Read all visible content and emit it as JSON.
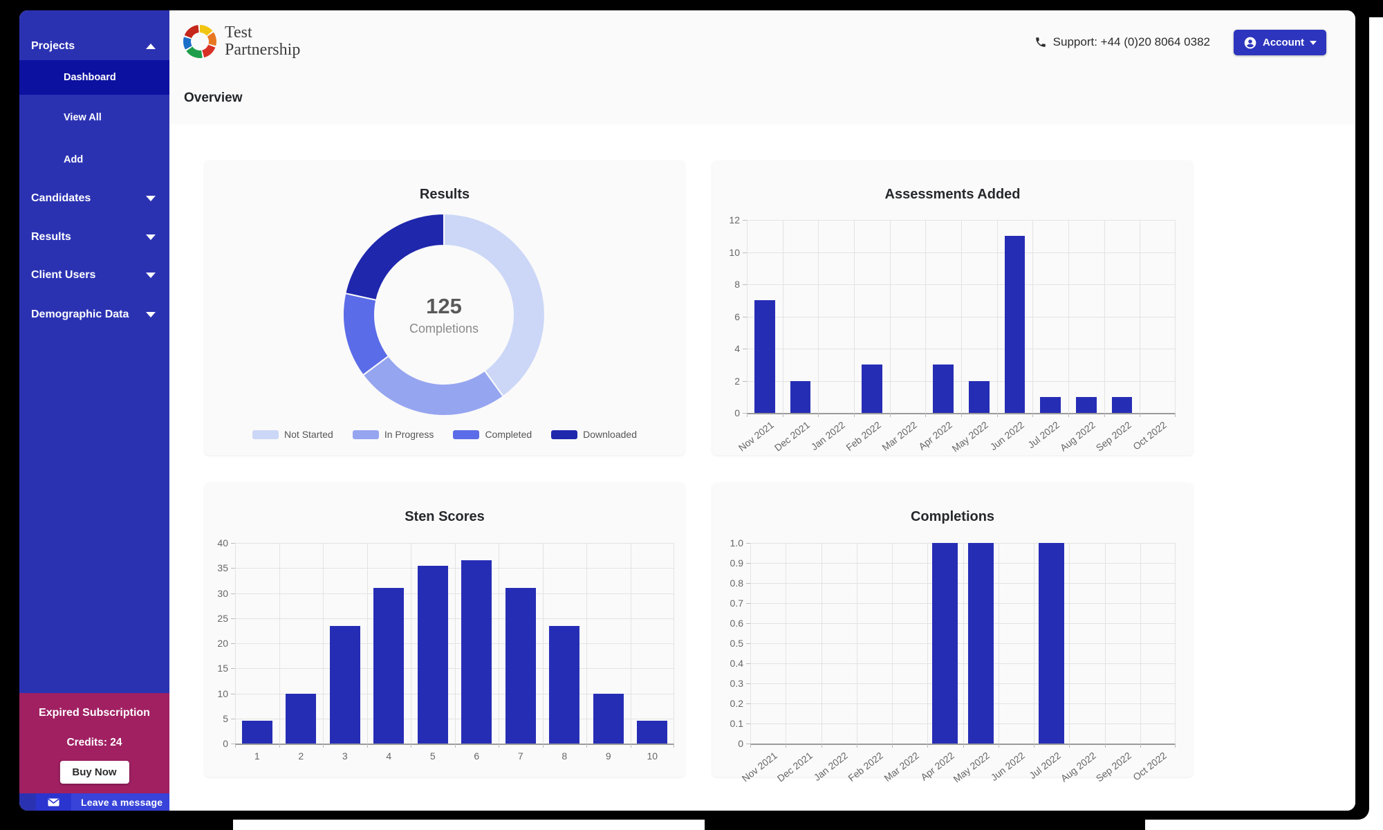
{
  "sidebar": {
    "bg": "#2b32b2",
    "active_bg": "#0d11a0",
    "projects_label": "Projects",
    "submenu": {
      "dashboard": "Dashboard",
      "view_all": "View All",
      "add": "Add"
    },
    "sections": {
      "candidates": "Candidates",
      "results": "Results",
      "client_users": "Client Users",
      "demographic": "Demographic Data"
    },
    "subscription": {
      "bg": "#a02062",
      "status": "Expired Subscription",
      "credits": "Credits: 24",
      "buy_label": "Buy Now"
    },
    "chat": {
      "label": "Leave a message"
    }
  },
  "header": {
    "brand_line1": "Test",
    "brand_line2": "Partnership",
    "support": "Support: +44 (0)20 8064 0382",
    "account_label": "Account",
    "page_title": "Overview",
    "accent": "#2d35be"
  },
  "chart_data": [
    {
      "id": "results",
      "type": "pie",
      "title": "Results",
      "center_value": "125",
      "center_label": "Completions",
      "legend_position": "bottom",
      "segments": [
        {
          "label": "Not Started",
          "value": 50,
          "color": "#ccd7f7"
        },
        {
          "label": "In Progress",
          "value": 31,
          "color": "#96a5f0"
        },
        {
          "label": "Completed",
          "value": 17,
          "color": "#5b6ce8"
        },
        {
          "label": "Downloaded",
          "value": 27,
          "color": "#1f27ad"
        }
      ]
    },
    {
      "id": "assessments",
      "type": "bar",
      "title": "Assessments Added",
      "categories": [
        "Nov 2021",
        "Dec 2021",
        "Jan 2022",
        "Feb 2022",
        "Mar 2022",
        "Apr 2022",
        "May 2022",
        "Jun 2022",
        "Jul 2022",
        "Aug 2022",
        "Sep 2022",
        "Oct 2022"
      ],
      "values": [
        7,
        2,
        0,
        3,
        0,
        3,
        2,
        11,
        1,
        1,
        1,
        0
      ],
      "ylim": [
        0,
        12
      ],
      "ytick_step": 2,
      "ytick_decimals": 0,
      "bar_color": "#262db5",
      "bar_width_frac": 0.58,
      "x_rotated": true,
      "grid": true
    },
    {
      "id": "sten",
      "type": "bar",
      "title": "Sten Scores",
      "categories": [
        "1",
        "2",
        "3",
        "4",
        "5",
        "6",
        "7",
        "8",
        "9",
        "10"
      ],
      "values": [
        4.5,
        9.9,
        23.5,
        31.1,
        35.5,
        36.6,
        31.1,
        23.5,
        9.9,
        4.5
      ],
      "ylim": [
        0,
        40
      ],
      "ytick_step": 5,
      "ytick_decimals": 0,
      "bar_color": "#262db5",
      "bar_width_frac": 0.7,
      "x_rotated": false,
      "grid": true
    },
    {
      "id": "completions",
      "type": "bar",
      "title": "Completions",
      "categories": [
        "Nov 2021",
        "Dec 2021",
        "Jan 2022",
        "Feb 2022",
        "Mar 2022",
        "Apr 2022",
        "May 2022",
        "Jun 2022",
        "Jul 2022",
        "Aug 2022",
        "Sep 2022",
        "Oct 2022"
      ],
      "values": [
        0,
        0,
        0,
        0,
        0,
        1,
        1,
        0,
        1,
        0,
        0,
        0
      ],
      "ylim": [
        0,
        1
      ],
      "ytick_step": 0.1,
      "ytick_decimals": 1,
      "bar_color": "#262db5",
      "bar_width_frac": 0.72,
      "x_rotated": true,
      "grid": true
    }
  ]
}
